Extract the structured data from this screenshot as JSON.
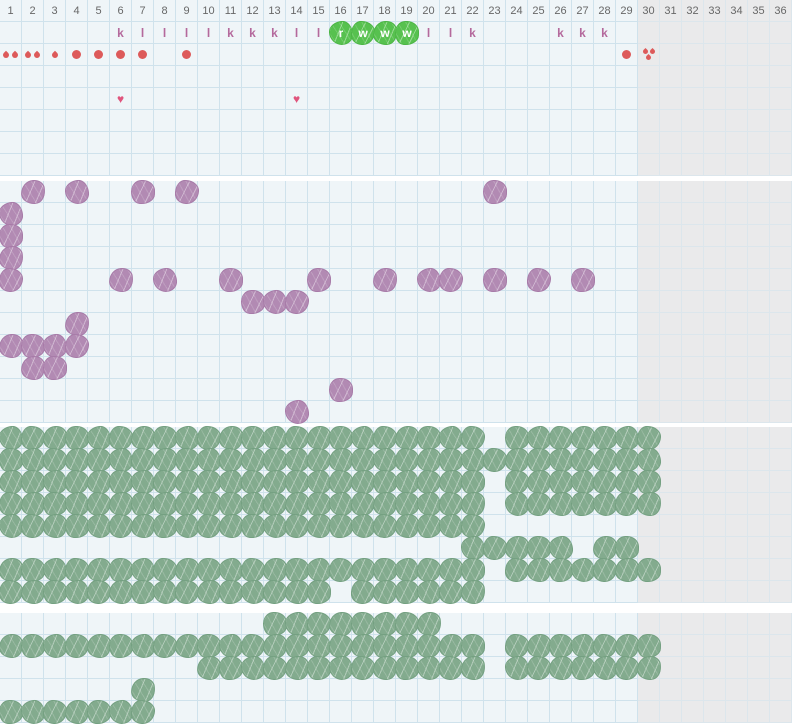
{
  "app": {
    "name": "cycle-tracking-chart-grid"
  },
  "colors": {
    "cell_bg": "#eff5f8",
    "shaded_bg": "#eaeaeb",
    "grid_line": "#cfe2ec",
    "shaded_grid_line": "#dce6ec",
    "separator": "#ffffff",
    "day_number_text": "#676767",
    "letter_text": "#b4699c",
    "highlight_green": "#57c14f",
    "highlight_green_edge": "#4cb545",
    "highlight_letter_text": "#ffffff",
    "flow_red": "#dd5a5a",
    "heart_pink": "#e0557d",
    "purple_blob": "#b28ab3",
    "purple_blob_edge": "#a77ba8",
    "green_blob": "#83ab8e",
    "green_blob_edge": "#74a081"
  },
  "icons": {
    "heart": "♥"
  },
  "grid": {
    "columns": 36,
    "shaded_from_column": 30,
    "day_numbers": [
      1,
      2,
      3,
      4,
      5,
      6,
      7,
      8,
      9,
      10,
      11,
      12,
      13,
      14,
      15,
      16,
      17,
      18,
      19,
      20,
      21,
      22,
      23,
      24,
      25,
      26,
      27,
      28,
      29,
      30,
      31,
      32,
      33,
      34,
      35,
      36
    ]
  },
  "sections": [
    {
      "name": "section-1-header-cycle",
      "rows": [
        {
          "type": "numbers"
        },
        {
          "type": "letters",
          "items": [
            {
              "c": 6,
              "t": "k"
            },
            {
              "c": 7,
              "t": "l"
            },
            {
              "c": 8,
              "t": "l"
            },
            {
              "c": 9,
              "t": "l"
            },
            {
              "c": 10,
              "t": "l"
            },
            {
              "c": 11,
              "t": "k"
            },
            {
              "c": 12,
              "t": "k"
            },
            {
              "c": 13,
              "t": "k"
            },
            {
              "c": 14,
              "t": "l"
            },
            {
              "c": 15,
              "t": "l"
            },
            {
              "c": 16,
              "t": "r",
              "highlight": true
            },
            {
              "c": 17,
              "t": "w",
              "highlight": true
            },
            {
              "c": 18,
              "t": "w",
              "highlight": true
            },
            {
              "c": 19,
              "t": "w",
              "highlight": true
            },
            {
              "c": 20,
              "t": "l"
            },
            {
              "c": 21,
              "t": "l"
            },
            {
              "c": 22,
              "t": "k"
            },
            {
              "c": 26,
              "t": "k"
            },
            {
              "c": 27,
              "t": "k"
            },
            {
              "c": 28,
              "t": "k"
            }
          ]
        },
        {
          "type": "flow",
          "items": [
            {
              "c": 1,
              "v": "drops2"
            },
            {
              "c": 2,
              "v": "drops2"
            },
            {
              "c": 3,
              "v": "drop1"
            },
            {
              "c": 4,
              "v": "dot"
            },
            {
              "c": 5,
              "v": "dot"
            },
            {
              "c": 6,
              "v": "dot"
            },
            {
              "c": 7,
              "v": "dot"
            },
            {
              "c": 9,
              "v": "dot"
            },
            {
              "c": 29,
              "v": "dot"
            },
            {
              "c": 30,
              "v": "drops3"
            }
          ]
        },
        {
          "type": "empty"
        },
        {
          "type": "hearts",
          "cols": [
            6,
            14
          ]
        },
        {
          "type": "empty"
        },
        {
          "type": "empty"
        },
        {
          "type": "empty"
        }
      ]
    },
    {
      "name": "section-2-purple",
      "blob": "purple",
      "rows": [
        {
          "type": "blobs",
          "cols": [
            2,
            4,
            7,
            9,
            23
          ]
        },
        {
          "type": "blobs",
          "cols": [
            1
          ]
        },
        {
          "type": "blobs",
          "cols": [
            1
          ]
        },
        {
          "type": "blobs",
          "cols": [
            1
          ]
        },
        {
          "type": "blobs",
          "cols": [
            1,
            6,
            8,
            11,
            15,
            18,
            20,
            21,
            23,
            25,
            27
          ]
        },
        {
          "type": "blobs",
          "cols": [
            12,
            13,
            14
          ]
        },
        {
          "type": "blobs",
          "cols": [
            4
          ]
        },
        {
          "type": "blobs",
          "cols": [
            1,
            2,
            3,
            4
          ]
        },
        {
          "type": "blobs",
          "cols": [
            2,
            3
          ]
        },
        {
          "type": "blobs",
          "cols": [
            16
          ]
        },
        {
          "type": "blobs",
          "cols": [
            14
          ]
        }
      ]
    },
    {
      "name": "section-3-green",
      "blob": "green",
      "rows": [
        {
          "type": "blobs",
          "ranges": [
            [
              1,
              22
            ],
            [
              24,
              30
            ]
          ]
        },
        {
          "type": "blobs",
          "ranges": [
            [
              1,
              30
            ]
          ]
        },
        {
          "type": "blobs",
          "ranges": [
            [
              1,
              22
            ],
            [
              24,
              30
            ]
          ]
        },
        {
          "type": "blobs",
          "ranges": [
            [
              1,
              22
            ],
            [
              24,
              30
            ]
          ]
        },
        {
          "type": "blobs",
          "ranges": [
            [
              1,
              22
            ]
          ]
        },
        {
          "type": "blobs",
          "ranges": [
            [
              22,
              26
            ],
            [
              28,
              29
            ]
          ]
        },
        {
          "type": "blobs",
          "ranges": [
            [
              1,
              22
            ],
            [
              24,
              30
            ]
          ]
        },
        {
          "type": "blobs",
          "ranges": [
            [
              1,
              15
            ],
            [
              17,
              22
            ]
          ]
        }
      ]
    },
    {
      "name": "section-4-green",
      "blob": "green",
      "rows": [
        {
          "type": "blobs",
          "ranges": [
            [
              13,
              20
            ]
          ]
        },
        {
          "type": "blobs",
          "ranges": [
            [
              1,
              22
            ],
            [
              24,
              30
            ]
          ]
        },
        {
          "type": "blobs",
          "ranges": [
            [
              10,
              22
            ],
            [
              24,
              30
            ]
          ]
        },
        {
          "type": "blobs",
          "ranges": [
            [
              7,
              7
            ]
          ]
        },
        {
          "type": "blobs",
          "ranges": [
            [
              1,
              7
            ]
          ]
        }
      ]
    }
  ]
}
